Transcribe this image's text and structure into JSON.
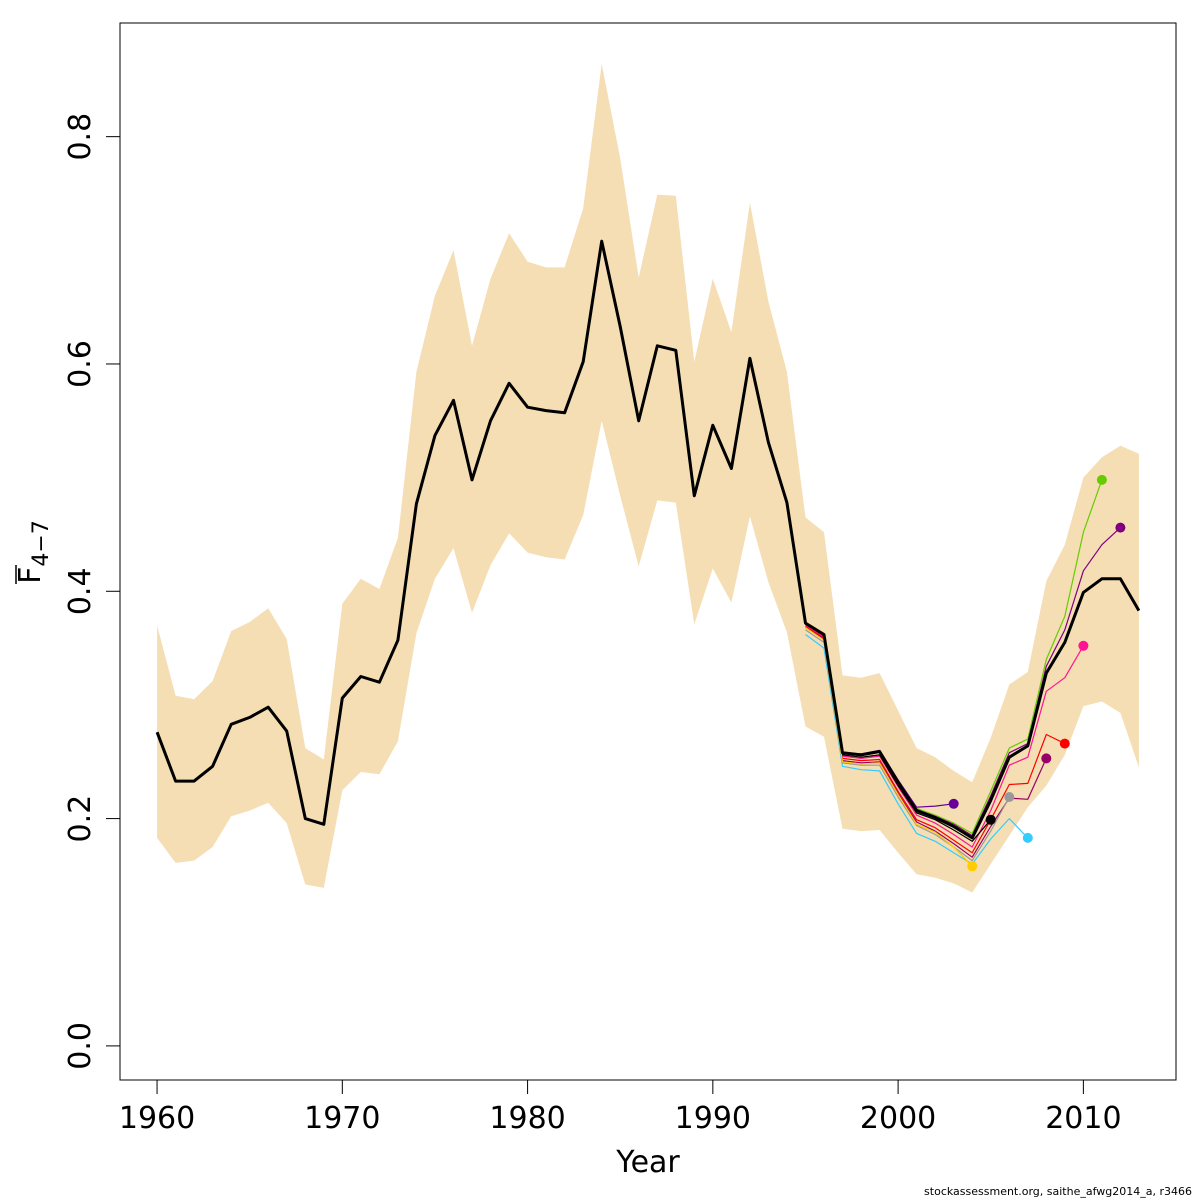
{
  "chart_data": {
    "type": "line",
    "title": "",
    "xlabel": "Year",
    "ylabel": "F",
    "ylabel_subscript": "4−7",
    "xlim": [
      1958,
      2015
    ],
    "ylim": [
      -0.03,
      0.9
    ],
    "xticks": [
      1960,
      1970,
      1980,
      1990,
      2000,
      2010
    ],
    "yticks": [
      0.0,
      0.2,
      0.4,
      0.6,
      0.8
    ],
    "ytick_labels": [
      "0.0",
      "0.2",
      "0.4",
      "0.6",
      "0.8"
    ],
    "grid": false,
    "legend": "none",
    "band": {
      "color": "#F5DEB3",
      "x": [
        1960,
        1961,
        1962,
        1963,
        1964,
        1965,
        1966,
        1967,
        1968,
        1969,
        1970,
        1971,
        1972,
        1973,
        1974,
        1975,
        1976,
        1977,
        1978,
        1979,
        1980,
        1981,
        1982,
        1983,
        1984,
        1985,
        1986,
        1987,
        1988,
        1989,
        1990,
        1991,
        1992,
        1993,
        1994,
        1995,
        1996,
        1997,
        1998,
        1999,
        2000,
        2001,
        2002,
        2003,
        2004,
        2005,
        2006,
        2007,
        2008,
        2009,
        2010,
        2011,
        2012,
        2013
      ],
      "lower": [
        0.183,
        0.161,
        0.163,
        0.175,
        0.202,
        0.207,
        0.214,
        0.196,
        0.142,
        0.139,
        0.225,
        0.241,
        0.239,
        0.268,
        0.363,
        0.411,
        0.438,
        0.381,
        0.423,
        0.451,
        0.434,
        0.43,
        0.428,
        0.467,
        0.55,
        0.484,
        0.422,
        0.48,
        0.478,
        0.371,
        0.42,
        0.39,
        0.466,
        0.408,
        0.364,
        0.281,
        0.272,
        0.191,
        0.189,
        0.19,
        0.17,
        0.151,
        0.148,
        0.143,
        0.135,
        0.16,
        0.185,
        0.21,
        0.229,
        0.256,
        0.299,
        0.303,
        0.293,
        0.245
      ],
      "upper": [
        0.37,
        0.308,
        0.305,
        0.321,
        0.365,
        0.373,
        0.385,
        0.358,
        0.262,
        0.252,
        0.389,
        0.411,
        0.402,
        0.447,
        0.593,
        0.66,
        0.7,
        0.616,
        0.675,
        0.715,
        0.69,
        0.685,
        0.685,
        0.737,
        0.864,
        0.781,
        0.676,
        0.749,
        0.748,
        0.602,
        0.675,
        0.628,
        0.742,
        0.655,
        0.593,
        0.465,
        0.452,
        0.326,
        0.324,
        0.328,
        0.295,
        0.262,
        0.254,
        0.242,
        0.232,
        0.271,
        0.318,
        0.329,
        0.409,
        0.441,
        0.5,
        0.518,
        0.528,
        0.521
      ]
    },
    "series": [
      {
        "color": "#000000",
        "width": 3,
        "end_marker": false,
        "x": [
          1960,
          1961,
          1962,
          1963,
          1964,
          1965,
          1966,
          1967,
          1968,
          1969,
          1970,
          1971,
          1972,
          1973,
          1974,
          1975,
          1976,
          1977,
          1978,
          1979,
          1980,
          1981,
          1982,
          1983,
          1984,
          1985,
          1986,
          1987,
          1988,
          1989,
          1990,
          1991,
          1992,
          1993,
          1994,
          1995,
          1996,
          1997,
          1998,
          1999,
          2000,
          2001,
          2002,
          2003,
          2004,
          2005,
          2006,
          2007,
          2008,
          2009,
          2010,
          2011,
          2012,
          2013
        ],
        "y": [
          0.276,
          0.233,
          0.233,
          0.246,
          0.283,
          0.289,
          0.298,
          0.277,
          0.2,
          0.195,
          0.306,
          0.325,
          0.32,
          0.357,
          0.477,
          0.537,
          0.568,
          0.498,
          0.55,
          0.583,
          0.562,
          0.559,
          0.557,
          0.602,
          0.708,
          0.633,
          0.55,
          0.616,
          0.612,
          0.484,
          0.546,
          0.508,
          0.605,
          0.531,
          0.478,
          0.372,
          0.362,
          0.258,
          0.256,
          0.259,
          0.232,
          0.207,
          0.201,
          0.193,
          0.183,
          0.216,
          0.254,
          0.264,
          0.328,
          0.355,
          0.399,
          0.411,
          0.411,
          0.383
        ]
      },
      {
        "color": "#66CC00",
        "width": 1.2,
        "end_marker": true,
        "x": [
          1995,
          1996,
          1997,
          1998,
          1999,
          2000,
          2001,
          2002,
          2003,
          2004,
          2005,
          2006,
          2007,
          2008,
          2009,
          2010,
          2011
        ],
        "y": [
          0.372,
          0.362,
          0.258,
          0.256,
          0.259,
          0.232,
          0.209,
          0.203,
          0.196,
          0.187,
          0.224,
          0.262,
          0.27,
          0.34,
          0.378,
          0.452,
          0.498
        ]
      },
      {
        "color": "#800080",
        "width": 1.2,
        "end_marker": true,
        "x": [
          1995,
          1996,
          1997,
          1998,
          1999,
          2000,
          2001,
          2002,
          2003,
          2004,
          2005,
          2006,
          2007,
          2008,
          2009,
          2010,
          2011,
          2012
        ],
        "y": [
          0.371,
          0.361,
          0.257,
          0.256,
          0.259,
          0.232,
          0.208,
          0.202,
          0.195,
          0.185,
          0.22,
          0.258,
          0.266,
          0.334,
          0.366,
          0.418,
          0.441,
          0.456
        ]
      },
      {
        "color": "#FF1493",
        "width": 1.2,
        "end_marker": true,
        "x": [
          1995,
          1996,
          1997,
          1998,
          1999,
          2000,
          2001,
          2002,
          2003,
          2004,
          2005,
          2006,
          2007,
          2008,
          2009,
          2010
        ],
        "y": [
          0.37,
          0.36,
          0.255,
          0.253,
          0.255,
          0.228,
          0.203,
          0.196,
          0.186,
          0.175,
          0.207,
          0.247,
          0.254,
          0.312,
          0.324,
          0.352
        ]
      },
      {
        "color": "#FF0000",
        "width": 1.2,
        "end_marker": true,
        "x": [
          1995,
          1996,
          1997,
          1998,
          1999,
          2000,
          2001,
          2002,
          2003,
          2004,
          2005,
          2006,
          2007,
          2008,
          2009
        ],
        "y": [
          0.369,
          0.359,
          0.253,
          0.251,
          0.252,
          0.224,
          0.199,
          0.192,
          0.181,
          0.17,
          0.199,
          0.23,
          0.231,
          0.274,
          0.266
        ]
      },
      {
        "color": "#990066",
        "width": 1.2,
        "end_marker": true,
        "x": [
          1995,
          1996,
          1997,
          1998,
          1999,
          2000,
          2001,
          2002,
          2003,
          2004,
          2005,
          2006,
          2007,
          2008
        ],
        "y": [
          0.368,
          0.358,
          0.251,
          0.249,
          0.25,
          0.222,
          0.197,
          0.189,
          0.178,
          0.166,
          0.193,
          0.218,
          0.217,
          0.253
        ]
      },
      {
        "color": "#33CCFF",
        "width": 1.2,
        "end_marker": true,
        "x": [
          1995,
          1996,
          1997,
          1998,
          1999,
          2000,
          2001,
          2002,
          2003,
          2004,
          2005,
          2006,
          2007
        ],
        "y": [
          0.362,
          0.35,
          0.246,
          0.243,
          0.242,
          0.213,
          0.187,
          0.18,
          0.17,
          0.16,
          0.182,
          0.2,
          0.183
        ]
      },
      {
        "color": "#999999",
        "width": 1.2,
        "end_marker": true,
        "x": [
          1995,
          1996,
          1997,
          1998,
          1999,
          2000,
          2001,
          2002,
          2003,
          2004,
          2005,
          2006
        ],
        "y": [
          0.366,
          0.355,
          0.249,
          0.247,
          0.247,
          0.219,
          0.194,
          0.186,
          0.175,
          0.163,
          0.189,
          0.219
        ]
      },
      {
        "color": "#000000",
        "width": 1.2,
        "end_marker": true,
        "x": [
          1995,
          1996,
          1997,
          1998,
          1999,
          2000,
          2001,
          2002,
          2003,
          2004,
          2005
        ],
        "y": [
          0.371,
          0.361,
          0.256,
          0.254,
          0.256,
          0.229,
          0.205,
          0.199,
          0.19,
          0.18,
          0.199
        ]
      },
      {
        "color": "#FFCC00",
        "width": 1.2,
        "end_marker": true,
        "x": [
          1995,
          1996,
          1997,
          1998,
          1999,
          2000,
          2001,
          2002,
          2003,
          2004
        ],
        "y": [
          0.368,
          0.357,
          0.25,
          0.248,
          0.249,
          0.221,
          0.195,
          0.188,
          0.175,
          0.158
        ]
      },
      {
        "color": "#660099",
        "width": 1.2,
        "end_marker": true,
        "x": [
          1995,
          1996,
          1997,
          1998,
          1999,
          2000,
          2001,
          2002,
          2003
        ],
        "y": [
          0.372,
          0.362,
          0.258,
          0.257,
          0.26,
          0.234,
          0.21,
          0.211,
          0.213
        ]
      }
    ]
  },
  "footnote": "stockassessment.org, saithe_afwg2014_a, r3466"
}
